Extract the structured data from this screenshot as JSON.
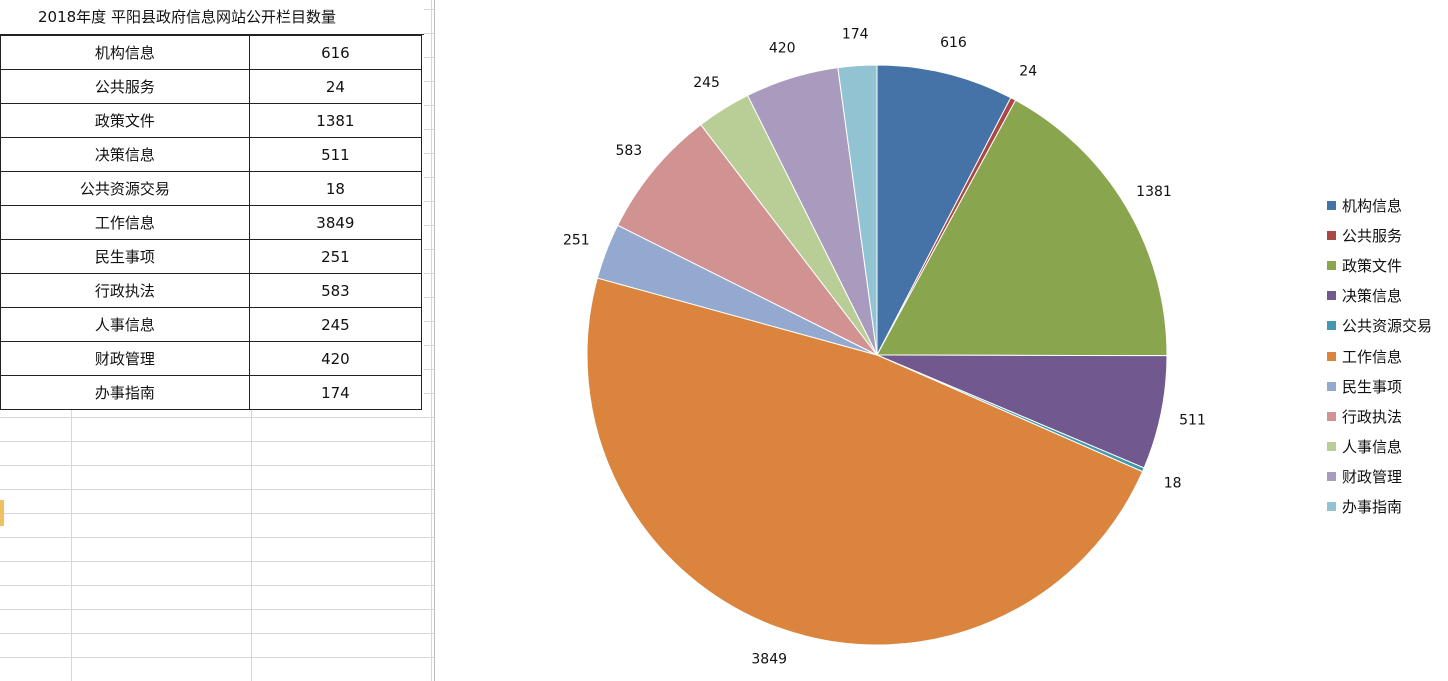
{
  "table": {
    "title": "2018年度  平阳县政府信息网站公开栏目数量"
  },
  "chart_data": {
    "type": "pie",
    "title": "",
    "categories": [
      "机构信息",
      "公共服务",
      "政策文件",
      "决策信息",
      "公共资源交易",
      "工作信息",
      "民生事项",
      "行政执法",
      "人事信息",
      "财政管理",
      "办事指南"
    ],
    "values": [
      616,
      24,
      1381,
      511,
      18,
      3849,
      251,
      583,
      245,
      420,
      174
    ],
    "colors": [
      "#4572A7",
      "#AA4643",
      "#89A54E",
      "#71588F",
      "#4198AF",
      "#DB843D",
      "#93A9CF",
      "#D19392",
      "#B9CD96",
      "#A99BBD",
      "#92C3D3"
    ],
    "legend": "right"
  }
}
